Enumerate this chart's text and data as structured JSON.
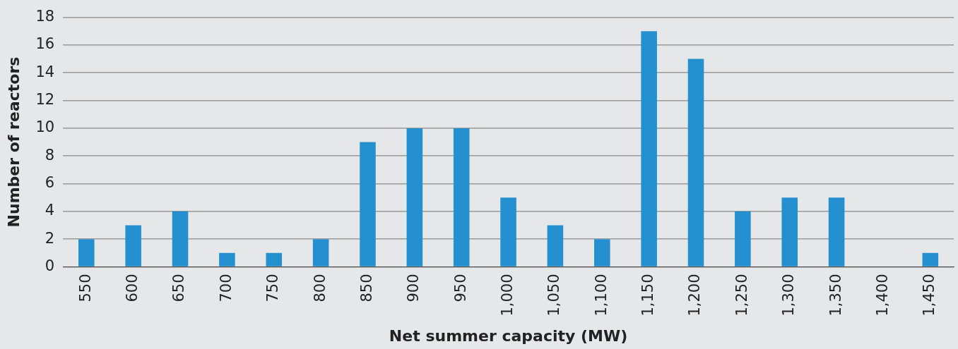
{
  "chart_data": {
    "type": "bar",
    "xlabel": "Net summer capacity (MW)",
    "ylabel": "Number of reactors",
    "categories": [
      "550",
      "600",
      "650",
      "700",
      "750",
      "800",
      "850",
      "900",
      "950",
      "1,000",
      "1,050",
      "1,100",
      "1,150",
      "1,200",
      "1,250",
      "1,300",
      "1,350",
      "1,400",
      "1,450"
    ],
    "values": [
      2,
      3,
      4,
      1,
      1,
      2,
      9,
      10,
      10,
      5,
      3,
      2,
      17,
      15,
      4,
      5,
      5,
      0,
      1
    ],
    "color": "#2490d0",
    "ylim": [
      0,
      18
    ],
    "yticks": [
      0,
      2,
      4,
      6,
      8,
      10,
      12,
      14,
      16,
      18
    ],
    "grid": "y",
    "legend": false
  }
}
